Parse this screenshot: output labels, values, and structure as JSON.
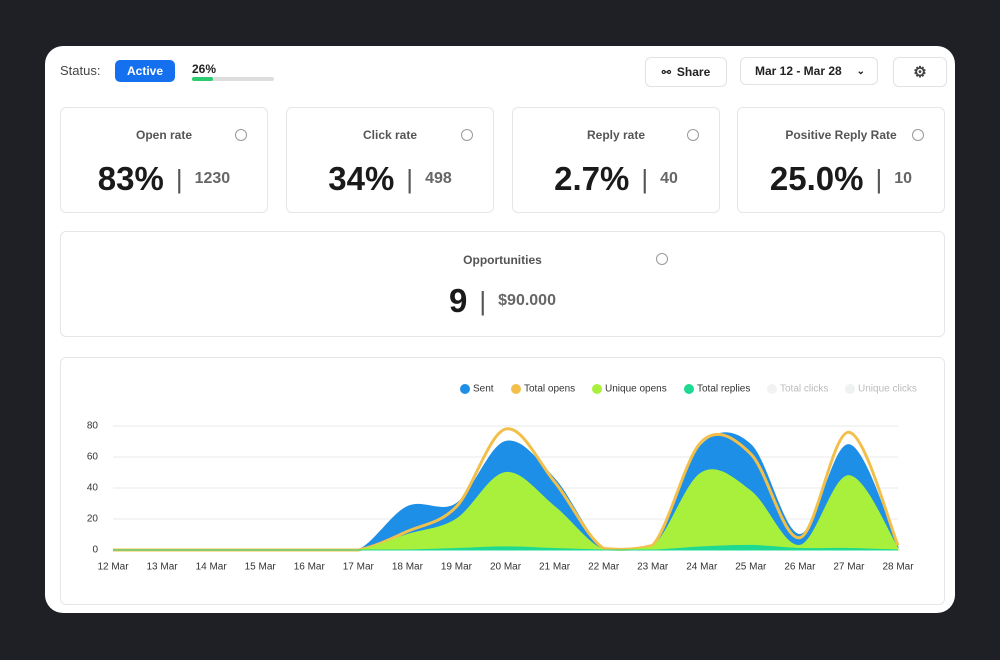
{
  "header": {
    "status_label": "Status:",
    "status": "Active",
    "progress": 26,
    "progress_label": "26%",
    "share": "Share",
    "date_range": "Mar 12 - Mar 28"
  },
  "stats": [
    {
      "title": "Open rate",
      "value": "83%",
      "count": "1230"
    },
    {
      "title": "Click rate",
      "value": "34%",
      "count": "498"
    },
    {
      "title": "Reply rate",
      "value": "2.7%",
      "count": "40"
    },
    {
      "title": "Positive Reply Rate",
      "value": "25.0%",
      "count": "10"
    }
  ],
  "opportunities": {
    "title": "Opportunities",
    "value": "9",
    "amount": "$90.000"
  },
  "chart_data": {
    "type": "area",
    "categories": [
      "12 Mar",
      "13 Mar",
      "14 Mar",
      "15 Mar",
      "16 Mar",
      "17 Mar",
      "18 Mar",
      "19 Mar",
      "20 Mar",
      "21 Mar",
      "22 Mar",
      "23 Mar",
      "24 Mar",
      "25 Mar",
      "26 Mar",
      "27 Mar",
      "28 Mar"
    ],
    "series": [
      {
        "name": "Sent",
        "color": "#1e8fe6",
        "style": "area",
        "values": [
          0,
          0,
          0,
          0,
          0,
          0,
          28,
          30,
          70,
          46,
          1,
          3,
          68,
          68,
          10,
          68,
          2
        ]
      },
      {
        "name": "Total opens",
        "color": "#f2c04a",
        "style": "line",
        "values": [
          0,
          0,
          0,
          0,
          0,
          0,
          12,
          28,
          78,
          44,
          1,
          3,
          70,
          62,
          8,
          76,
          3
        ]
      },
      {
        "name": "Unique opens",
        "color": "#a8f03c",
        "style": "area",
        "values": [
          0,
          0,
          0,
          0,
          0,
          0,
          10,
          20,
          50,
          28,
          0,
          2,
          50,
          38,
          3,
          48,
          1
        ]
      },
      {
        "name": "Total replies",
        "color": "#1ed991",
        "style": "area",
        "values": [
          0,
          0,
          0,
          0,
          0,
          0,
          0,
          1,
          2,
          1,
          0,
          0,
          2,
          3,
          1,
          1,
          0
        ]
      }
    ],
    "disabled_series": [
      {
        "name": "Total clicks",
        "color": "#f2f2f2"
      },
      {
        "name": "Unique clicks",
        "color": "#eef2f0"
      }
    ],
    "ylim": [
      0,
      80
    ],
    "yticks": [
      0,
      20,
      40,
      60,
      80
    ],
    "grid": true
  }
}
